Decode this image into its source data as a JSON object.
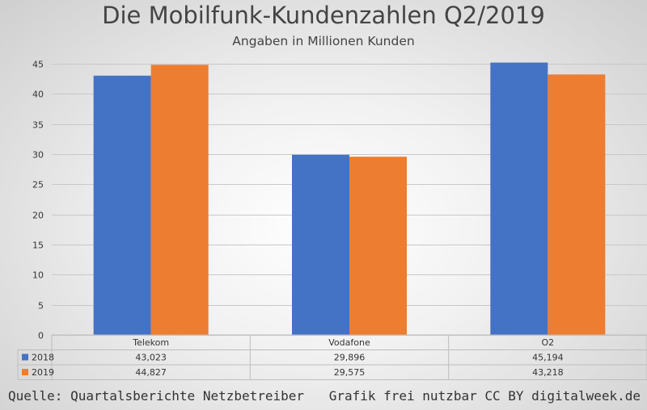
{
  "header": {
    "title": "Die Mobilfunk-Kundenzahlen Q2/2019",
    "subtitle": "Angaben in Millionen Kunden"
  },
  "footer": {
    "source": "Quelle: Quartalsberichte Netzbetreiber",
    "license": "Grafik frei nutzbar CC BY digitalweek.de"
  },
  "chart_data": {
    "type": "bar",
    "categories": [
      "Telekom",
      "Vodafone",
      "O2"
    ],
    "series": [
      {
        "name": "2018",
        "values": [
          43.023,
          29.896,
          45.194
        ],
        "labels": [
          "43,023",
          "29,896",
          "45,194"
        ],
        "color": "#4472C4"
      },
      {
        "name": "2019",
        "values": [
          44.827,
          29.575,
          43.218
        ],
        "labels": [
          "44,827",
          "29,575",
          "43,218"
        ],
        "color": "#ED7D31"
      }
    ],
    "ylim": [
      0,
      45
    ],
    "yticks": [
      0,
      5,
      10,
      15,
      20,
      25,
      30,
      35,
      40,
      45
    ],
    "grid": true,
    "legend": "data-table"
  }
}
